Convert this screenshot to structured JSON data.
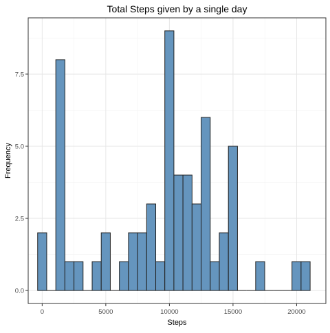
{
  "chart_data": {
    "type": "bar",
    "title": "Total Steps given by a single day",
    "xlabel": "Steps",
    "ylabel": "Frequency",
    "xlim": [
      -1100,
      22300
    ],
    "ylim": [
      -0.45,
      9.45
    ],
    "x_ticks": [
      0,
      5000,
      10000,
      15000,
      20000
    ],
    "x_tick_labels": [
      "0",
      "5000",
      "10000",
      "15000",
      "20000"
    ],
    "y_ticks": [
      0,
      2.5,
      5,
      7.5
    ],
    "y_tick_labels": [
      "0.0",
      "2.5",
      "5.0",
      "7.5"
    ],
    "bin_width": 714,
    "bins": [
      {
        "center": 0,
        "count": 2
      },
      {
        "center": 714,
        "count": 0
      },
      {
        "center": 1428,
        "count": 8
      },
      {
        "center": 2142,
        "count": 1
      },
      {
        "center": 2856,
        "count": 1
      },
      {
        "center": 3570,
        "count": 0
      },
      {
        "center": 4284,
        "count": 1
      },
      {
        "center": 4998,
        "count": 2
      },
      {
        "center": 5712,
        "count": 0
      },
      {
        "center": 6426,
        "count": 1
      },
      {
        "center": 7140,
        "count": 2
      },
      {
        "center": 7854,
        "count": 2
      },
      {
        "center": 8568,
        "count": 3
      },
      {
        "center": 9282,
        "count": 1
      },
      {
        "center": 9996,
        "count": 9
      },
      {
        "center": 10710,
        "count": 4
      },
      {
        "center": 11424,
        "count": 4
      },
      {
        "center": 12138,
        "count": 3
      },
      {
        "center": 12852,
        "count": 6
      },
      {
        "center": 13566,
        "count": 1
      },
      {
        "center": 14280,
        "count": 2
      },
      {
        "center": 14994,
        "count": 5
      },
      {
        "center": 15708,
        "count": 0
      },
      {
        "center": 16422,
        "count": 0
      },
      {
        "center": 17136,
        "count": 1
      },
      {
        "center": 17850,
        "count": 0
      },
      {
        "center": 18564,
        "count": 0
      },
      {
        "center": 19278,
        "count": 0
      },
      {
        "center": 19992,
        "count": 1
      },
      {
        "center": 20706,
        "count": 1
      }
    ],
    "grid": true,
    "colors": {
      "bar_fill": "#6595be",
      "bar_stroke": "#222222",
      "grid_major": "#e6e6e6",
      "grid_minor": "#f2f2f2",
      "panel_border": "#333333",
      "text": "#000000",
      "tick_text": "#4d4d4d"
    }
  }
}
